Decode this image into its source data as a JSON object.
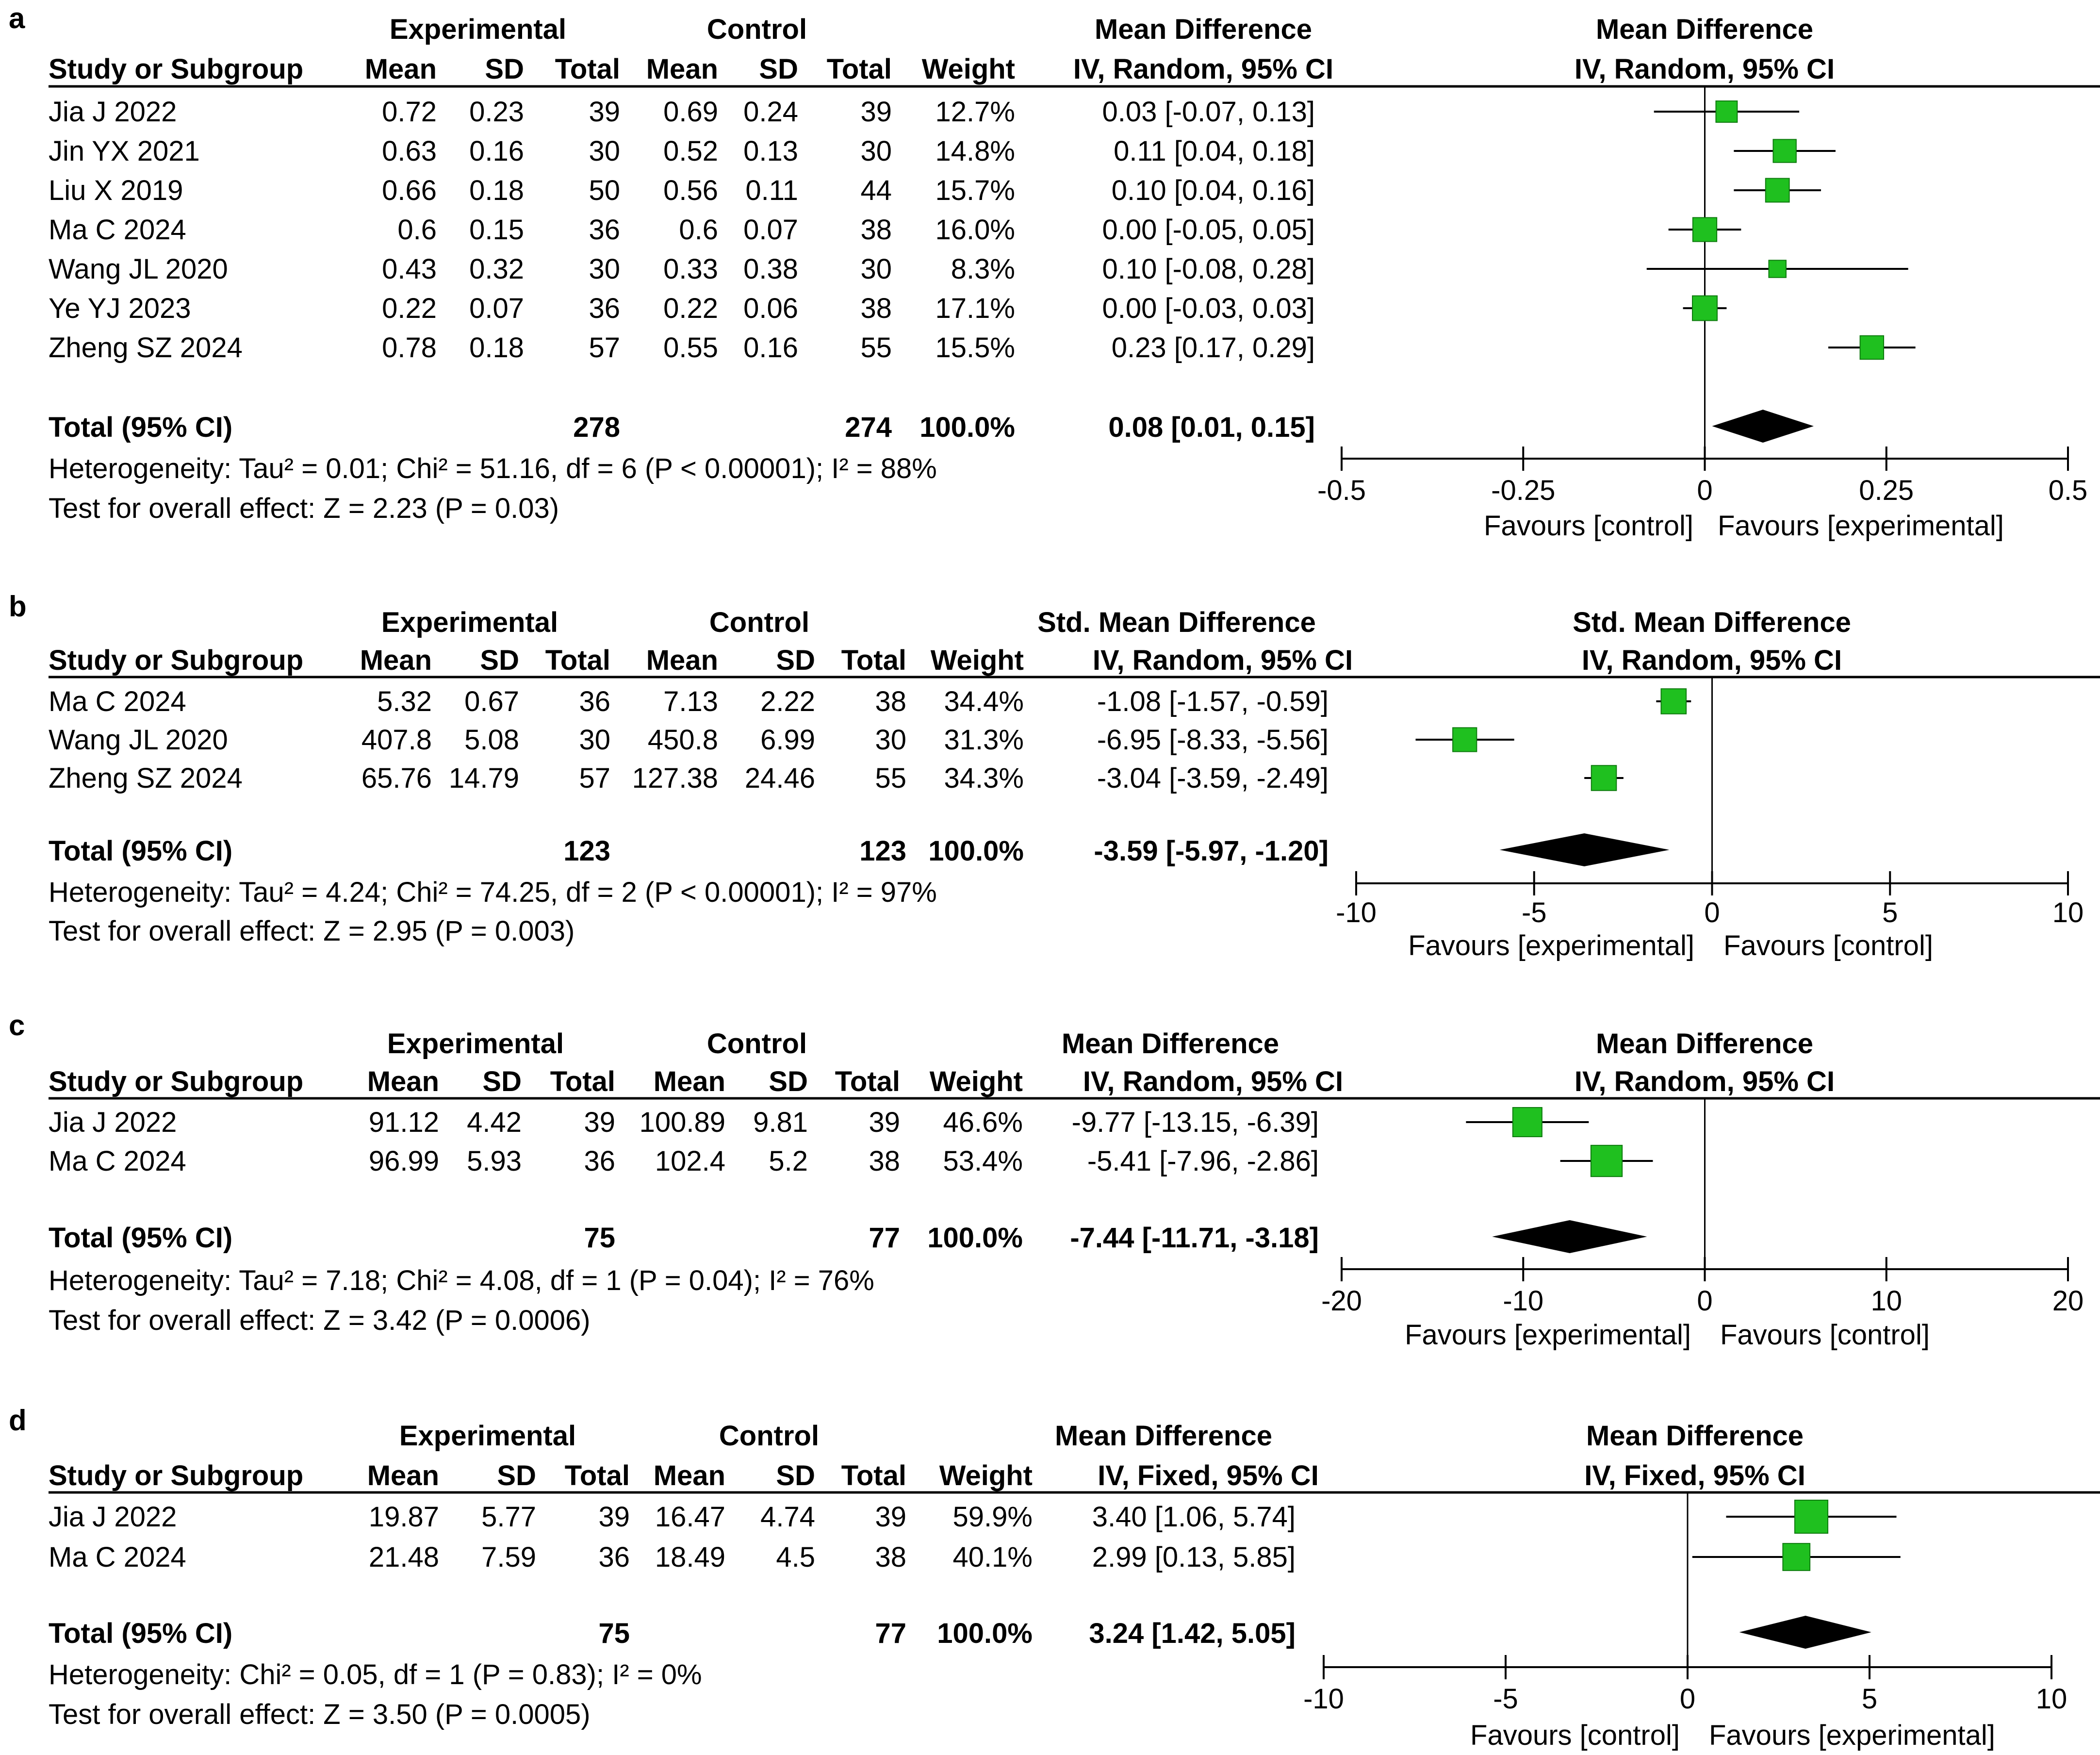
{
  "chart_data": [
    {
      "panel": "a",
      "type": "forest",
      "group_headers": {
        "experimental": "Experimental",
        "control": "Control"
      },
      "columns": {
        "study": "Study or Subgroup",
        "exp_mean": "Mean",
        "exp_sd": "SD",
        "exp_total": "Total",
        "ctl_mean": "Mean",
        "ctl_sd": "SD",
        "ctl_total": "Total",
        "weight": "Weight",
        "effect_title": "Mean Difference",
        "effect_sub": "IV, Random, 95% CI"
      },
      "plot_title": "Mean Difference",
      "plot_sub": "IV, Random, 95% CI",
      "rows": [
        {
          "study": "Jia J 2022",
          "exp_mean": "0.72",
          "exp_sd": "0.23",
          "exp_total": "39",
          "ctl_mean": "0.69",
          "ctl_sd": "0.24",
          "ctl_total": "39",
          "weight": "12.7%",
          "ci_text": "0.03 [-0.07, 0.13]",
          "est": 0.03,
          "lo": -0.07,
          "hi": 0.13,
          "w": 12.7
        },
        {
          "study": "Jin YX 2021",
          "exp_mean": "0.63",
          "exp_sd": "0.16",
          "exp_total": "30",
          "ctl_mean": "0.52",
          "ctl_sd": "0.13",
          "ctl_total": "30",
          "weight": "14.8%",
          "ci_text": "0.11 [0.04, 0.18]",
          "est": 0.11,
          "lo": 0.04,
          "hi": 0.18,
          "w": 14.8
        },
        {
          "study": "Liu X 2019",
          "exp_mean": "0.66",
          "exp_sd": "0.18",
          "exp_total": "50",
          "ctl_mean": "0.56",
          "ctl_sd": "0.11",
          "ctl_total": "44",
          "weight": "15.7%",
          "ci_text": "0.10 [0.04, 0.16]",
          "est": 0.1,
          "lo": 0.04,
          "hi": 0.16,
          "w": 15.7
        },
        {
          "study": "Ma C 2024",
          "exp_mean": "0.6",
          "exp_sd": "0.15",
          "exp_total": "36",
          "ctl_mean": "0.6",
          "ctl_sd": "0.07",
          "ctl_total": "38",
          "weight": "16.0%",
          "ci_text": "0.00 [-0.05, 0.05]",
          "est": 0.0,
          "lo": -0.05,
          "hi": 0.05,
          "w": 16.0
        },
        {
          "study": "Wang JL 2020",
          "exp_mean": "0.43",
          "exp_sd": "0.32",
          "exp_total": "30",
          "ctl_mean": "0.33",
          "ctl_sd": "0.38",
          "ctl_total": "30",
          "weight": "8.3%",
          "ci_text": "0.10 [-0.08, 0.28]",
          "est": 0.1,
          "lo": -0.08,
          "hi": 0.28,
          "w": 8.3
        },
        {
          "study": "Ye YJ 2023",
          "exp_mean": "0.22",
          "exp_sd": "0.07",
          "exp_total": "36",
          "ctl_mean": "0.22",
          "ctl_sd": "0.06",
          "ctl_total": "38",
          "weight": "17.1%",
          "ci_text": "0.00 [-0.03, 0.03]",
          "est": 0.0,
          "lo": -0.03,
          "hi": 0.03,
          "w": 17.1
        },
        {
          "study": "Zheng SZ 2024",
          "exp_mean": "0.78",
          "exp_sd": "0.18",
          "exp_total": "57",
          "ctl_mean": "0.55",
          "ctl_sd": "0.16",
          "ctl_total": "55",
          "weight": "15.5%",
          "ci_text": "0.23 [0.17, 0.29]",
          "est": 0.23,
          "lo": 0.17,
          "hi": 0.29,
          "w": 15.5
        }
      ],
      "total": {
        "label": "Total (95% CI)",
        "exp_total": "278",
        "ctl_total": "274",
        "weight": "100.0%",
        "ci_text": "0.08 [0.01, 0.15]",
        "est": 0.08,
        "lo": 0.01,
        "hi": 0.15
      },
      "heterogeneity": "Heterogeneity: Tau² = 0.01; Chi² = 51.16, df = 6 (P < 0.00001); I² = 88%",
      "overall": "Test for overall effect: Z = 2.23 (P = 0.03)",
      "axis": {
        "min": -0.5,
        "max": 0.5,
        "ticks": [
          -0.5,
          -0.25,
          0,
          0.25,
          0.5
        ],
        "tick_labels": [
          "-0.5",
          "-0.25",
          "0",
          "0.25",
          "0.5"
        ]
      },
      "favours_left": "Favours [control]",
      "favours_right": "Favours [experimental]",
      "marker_scale": 0.35
    },
    {
      "panel": "b",
      "type": "forest",
      "group_headers": {
        "experimental": "Experimental",
        "control": "Control"
      },
      "columns": {
        "study": "Study or Subgroup",
        "exp_mean": "Mean",
        "exp_sd": "SD",
        "exp_total": "Total",
        "ctl_mean": "Mean",
        "ctl_sd": "SD",
        "ctl_total": "Total",
        "weight": "Weight",
        "effect_title": "Std. Mean Difference",
        "effect_sub": "IV, Random, 95% CI"
      },
      "plot_title": "Std. Mean Difference",
      "plot_sub": "IV, Random, 95% CI",
      "rows": [
        {
          "study": "Ma C 2024",
          "exp_mean": "5.32",
          "exp_sd": "0.67",
          "exp_total": "36",
          "ctl_mean": "7.13",
          "ctl_sd": "2.22",
          "ctl_total": "38",
          "weight": "34.4%",
          "ci_text": "-1.08 [-1.57, -0.59]",
          "est": -1.08,
          "lo": -1.57,
          "hi": -0.59,
          "w": 34.4
        },
        {
          "study": "Wang JL 2020",
          "exp_mean": "407.8",
          "exp_sd": "5.08",
          "exp_total": "30",
          "ctl_mean": "450.8",
          "ctl_sd": "6.99",
          "ctl_total": "30",
          "weight": "31.3%",
          "ci_text": "-6.95 [-8.33, -5.56]",
          "est": -6.95,
          "lo": -8.33,
          "hi": -5.56,
          "w": 31.3
        },
        {
          "study": "Zheng SZ 2024",
          "exp_mean": "65.76",
          "exp_sd": "14.79",
          "exp_total": "57",
          "ctl_mean": "127.38",
          "ctl_sd": "24.46",
          "ctl_total": "55",
          "weight": "34.3%",
          "ci_text": "-3.04 [-3.59, -2.49]",
          "est": -3.04,
          "lo": -3.59,
          "hi": -2.49,
          "w": 34.3
        }
      ],
      "total": {
        "label": "Total (95% CI)",
        "exp_total": "123",
        "ctl_total": "123",
        "weight": "100.0%",
        "ci_text": "-3.59 [-5.97, -1.20]",
        "est": -3.59,
        "lo": -5.97,
        "hi": -1.2
      },
      "heterogeneity": "Heterogeneity: Tau² = 4.24; Chi² = 74.25, df = 2 (P < 0.00001); I² = 97%",
      "overall": "Test for overall effect: Z = 2.95 (P = 0.003)",
      "axis": {
        "min": -10,
        "max": 10,
        "ticks": [
          -10,
          -5,
          0,
          5,
          10
        ],
        "tick_labels": [
          "-10",
          "-5",
          "0",
          "5",
          "10"
        ]
      },
      "favours_left": "Favours [experimental]",
      "favours_right": "Favours [control]",
      "marker_scale": 0.25
    },
    {
      "panel": "c",
      "type": "forest",
      "group_headers": {
        "experimental": "Experimental",
        "control": "Control"
      },
      "columns": {
        "study": "Study or Subgroup",
        "exp_mean": "Mean",
        "exp_sd": "SD",
        "exp_total": "Total",
        "ctl_mean": "Mean",
        "ctl_sd": "SD",
        "ctl_total": "Total",
        "weight": "Weight",
        "effect_title": "Mean Difference",
        "effect_sub": "IV, Random, 95% CI"
      },
      "plot_title": "Mean Difference",
      "plot_sub": "IV, Random, 95% CI",
      "rows": [
        {
          "study": "Jia J 2022",
          "exp_mean": "91.12",
          "exp_sd": "4.42",
          "exp_total": "39",
          "ctl_mean": "100.89",
          "ctl_sd": "9.81",
          "ctl_total": "39",
          "weight": "46.6%",
          "ci_text": "-9.77 [-13.15, -6.39]",
          "est": -9.77,
          "lo": -13.15,
          "hi": -6.39,
          "w": 46.6
        },
        {
          "study": "Ma C 2024",
          "exp_mean": "96.99",
          "exp_sd": "5.93",
          "exp_total": "36",
          "ctl_mean": "102.4",
          "ctl_sd": "5.2",
          "ctl_total": "38",
          "weight": "53.4%",
          "ci_text": "-5.41 [-7.96, -2.86]",
          "est": -5.41,
          "lo": -7.96,
          "hi": -2.86,
          "w": 53.4
        }
      ],
      "total": {
        "label": "Total (95% CI)",
        "exp_total": "75",
        "ctl_total": "77",
        "weight": "100.0%",
        "ci_text": "-7.44 [-11.71, -3.18]",
        "est": -7.44,
        "lo": -11.71,
        "hi": -3.18
      },
      "heterogeneity": "Heterogeneity: Tau² = 7.18; Chi² = 4.08, df = 1 (P = 0.04); I² = 76%",
      "overall": "Test for overall effect: Z = 3.42 (P = 0.0006)",
      "axis": {
        "min": -20,
        "max": 20,
        "ticks": [
          -20,
          -10,
          0,
          10,
          20
        ],
        "tick_labels": [
          "-20",
          "-10",
          "0",
          "10",
          "20"
        ]
      },
      "favours_left": "Favours [experimental]",
      "favours_right": "Favours [control]",
      "marker_scale": 0.25
    },
    {
      "panel": "d",
      "type": "forest",
      "group_headers": {
        "experimental": "Experimental",
        "control": "Control"
      },
      "columns": {
        "study": "Study or Subgroup",
        "exp_mean": "Mean",
        "exp_sd": "SD",
        "exp_total": "Total",
        "ctl_mean": "Mean",
        "ctl_sd": "SD",
        "ctl_total": "Total",
        "weight": "Weight",
        "effect_title": "Mean Difference",
        "effect_sub": "IV, Fixed, 95% CI"
      },
      "plot_title": "Mean Difference",
      "plot_sub": "IV, Fixed, 95% CI",
      "rows": [
        {
          "study": "Jia J 2022",
          "exp_mean": "19.87",
          "exp_sd": "5.77",
          "exp_total": "39",
          "ctl_mean": "16.47",
          "ctl_sd": "4.74",
          "ctl_total": "39",
          "weight": "59.9%",
          "ci_text": "3.40 [1.06, 5.74]",
          "est": 3.4,
          "lo": 1.06,
          "hi": 5.74,
          "w": 59.9
        },
        {
          "study": "Ma C 2024",
          "exp_mean": "21.48",
          "exp_sd": "7.59",
          "exp_total": "36",
          "ctl_mean": "18.49",
          "ctl_sd": "4.5",
          "ctl_total": "38",
          "weight": "40.1%",
          "ci_text": "2.99 [0.13, 5.85]",
          "est": 2.99,
          "lo": 0.13,
          "hi": 5.85,
          "w": 40.1
        }
      ],
      "total": {
        "label": "Total (95% CI)",
        "exp_total": "75",
        "ctl_total": "77",
        "weight": "100.0%",
        "ci_text": "3.24 [1.42, 5.05]",
        "est": 3.24,
        "lo": 1.42,
        "hi": 5.05
      },
      "heterogeneity": "Heterogeneity: Chi² = 0.05, df = 1 (P = 0.83); I² = 0%",
      "overall": "Test for overall effect: Z = 3.50 (P = 0.0005)",
      "axis": {
        "min": -10,
        "max": 10,
        "ticks": [
          -10,
          -5,
          0,
          5,
          10
        ],
        "tick_labels": [
          "-10",
          "-5",
          "0",
          "5",
          "10"
        ]
      },
      "favours_left": "Favours [control]",
      "favours_right": "Favours [experimental]",
      "marker_scale": 0.25
    }
  ],
  "colors": {
    "marker": "#1fc01f",
    "marker_edge": "#0e7a0e",
    "diamond": "#000000",
    "line": "#000000",
    "text": "#000000"
  }
}
